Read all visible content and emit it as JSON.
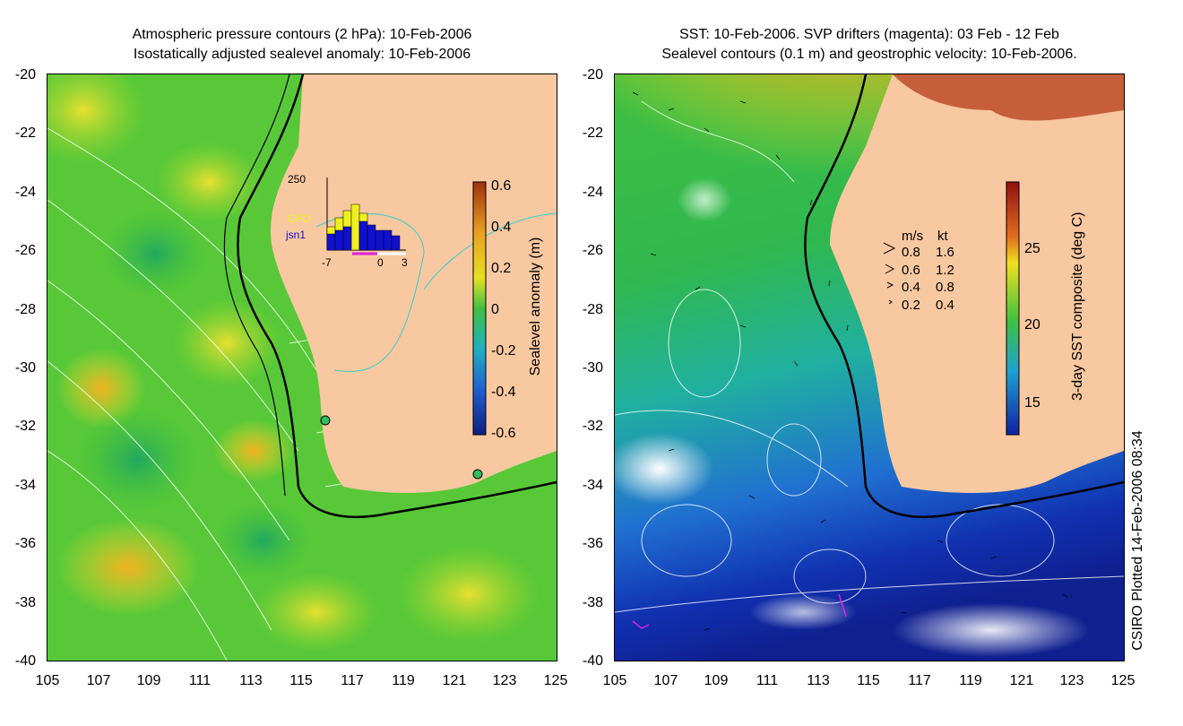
{
  "left_panel": {
    "title_line1": "Atmospheric pressure contours (2 hPa): 10-Feb-2006",
    "title_line2": "Isostatically adjusted sealevel anomaly: 10-Feb-2006",
    "colorbar": {
      "label": "Sealevel anomaly (m)",
      "ticks": [
        "0.6",
        "0.4",
        "0.2",
        "0",
        "-0.2",
        "-0.4",
        "-0.6"
      ],
      "colors": [
        "#b04010",
        "#e8a020",
        "#f0e020",
        "#40c040",
        "#20b0c0",
        "#2060d0",
        "#102080"
      ]
    },
    "inset": {
      "ymax_label": "250",
      "series": [
        "GFO",
        "jsn1"
      ],
      "series_colors": [
        "#f0f020",
        "#1010d0"
      ],
      "x_labels": [
        "-7",
        "0",
        "3"
      ]
    }
  },
  "right_panel": {
    "title_line1": "SST: 10-Feb-2006. SVP drifters (magenta): 03 Feb - 12 Feb",
    "title_line2": "Sealevel contours (0.1 m) and geostrophic velocity: 10-Feb-2006.",
    "colorbar": {
      "label": "3-day SST composite (deg C)",
      "ticks": [
        "25",
        "20",
        "15"
      ],
      "colors": [
        "#901010",
        "#e07020",
        "#f0e020",
        "#40c040",
        "#20a0d0",
        "#1020a0"
      ]
    },
    "velocity_legend": {
      "header_ms": "m/s",
      "header_kt": "kt",
      "rows": [
        {
          "ms": "0.8",
          "kt": "1.6"
        },
        {
          "ms": "0.6",
          "kt": "1.2"
        },
        {
          "ms": "0.4",
          "kt": "0.8"
        },
        {
          "ms": "0.2",
          "kt": "0.4"
        }
      ]
    }
  },
  "axes": {
    "y_ticks": [
      "-20",
      "-22",
      "-24",
      "-26",
      "-28",
      "-30",
      "-32",
      "-34",
      "-36",
      "-38",
      "-40"
    ],
    "x_ticks": [
      "105",
      "107",
      "109",
      "111",
      "113",
      "115",
      "117",
      "119",
      "121",
      "123",
      "125"
    ]
  },
  "credit": "CSIRO Plotted 14-Feb-2006 08:34",
  "colors": {
    "land": "#f8c8a0",
    "coast": "#000000",
    "contour": "#ffffff",
    "drifter": "#e020e0"
  }
}
